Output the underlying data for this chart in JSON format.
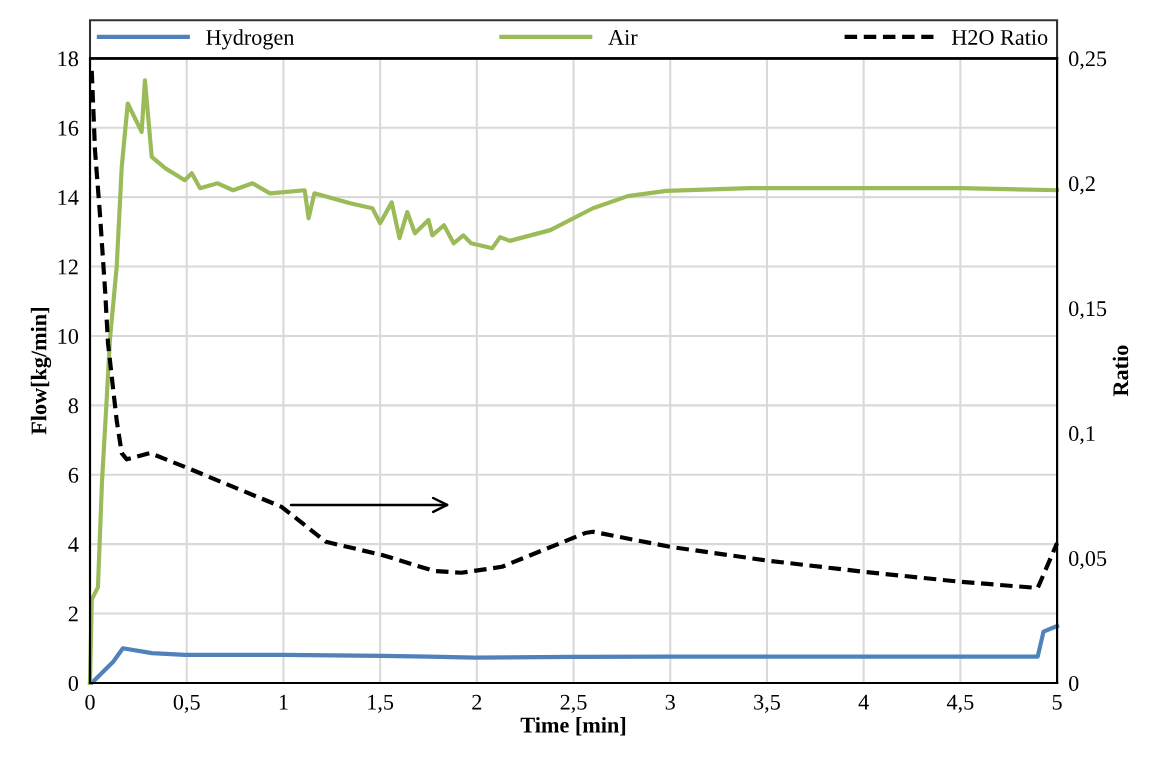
{
  "chart_data": {
    "type": "line",
    "xlabel": "Time [min]",
    "ylabel": "Flow[kg/min]",
    "y2label": "Ratio",
    "xlim": [
      0,
      5
    ],
    "xticks": [
      0,
      {
        "value": 0.5,
        "label": "0,5"
      },
      1,
      {
        "value": 1.5,
        "label": "1,5"
      },
      2,
      {
        "value": 2.5,
        "label": "2,5"
      },
      3,
      {
        "value": 3.5,
        "label": "3,5"
      },
      4,
      {
        "value": 4.5,
        "label": "4,5"
      },
      5
    ],
    "ylim": [
      0,
      18
    ],
    "yticks": [
      0,
      2,
      4,
      6,
      8,
      10,
      12,
      14,
      16,
      18
    ],
    "y2lim": [
      0,
      0.25
    ],
    "y2ticks": [
      0,
      {
        "value": 0.05,
        "label": "0,05"
      },
      {
        "value": 0.1,
        "label": "0,1"
      },
      {
        "value": 0.15,
        "label": "0,15"
      },
      {
        "value": 0.2,
        "label": "0,2"
      },
      {
        "value": 0.25,
        "label": "0,25"
      }
    ],
    "grid": true,
    "legend": "top",
    "marker": "none",
    "series": [
      {
        "name": "Hydrogen",
        "color": "#4f81bd",
        "line_style": "solid",
        "x": [
          0,
          0.009,
          0.12,
          0.17,
          0.32,
          0.49,
          1.0,
          1.51,
          1.75,
          1.99,
          2.5,
          3.0,
          4.0,
          4.9,
          4.93,
          5.0
        ],
        "values": [
          0,
          0,
          0.61,
          1.0,
          0.86,
          0.81,
          0.81,
          0.78,
          0.76,
          0.73,
          0.75,
          0.76,
          0.76,
          0.76,
          1.48,
          1.64
        ]
      },
      {
        "name": "Air",
        "color": "#9bbb59",
        "line_style": "solid",
        "x": [
          0,
          0.009,
          0.041,
          0.062,
          0.086,
          0.103,
          0.138,
          0.164,
          0.195,
          0.267,
          0.284,
          0.319,
          0.39,
          0.49,
          0.526,
          0.569,
          0.66,
          0.74,
          0.84,
          0.93,
          1.11,
          1.13,
          1.16,
          1.35,
          1.46,
          1.5,
          1.56,
          1.6,
          1.64,
          1.68,
          1.75,
          1.77,
          1.83,
          1.88,
          1.93,
          1.97,
          2.08,
          2.12,
          2.17,
          2.38,
          2.6,
          2.78,
          2.98,
          3.41,
          4.0,
          4.5,
          5.0
        ],
        "values": [
          0,
          2.4,
          2.76,
          5.8,
          8.15,
          9.9,
          12.0,
          14.87,
          16.7,
          15.88,
          17.37,
          15.16,
          14.83,
          14.49,
          14.69,
          14.26,
          14.4,
          14.2,
          14.4,
          14.11,
          14.2,
          13.39,
          14.11,
          13.82,
          13.68,
          13.25,
          13.85,
          12.82,
          13.57,
          12.96,
          13.34,
          12.9,
          13.19,
          12.67,
          12.9,
          12.67,
          12.53,
          12.85,
          12.74,
          13.05,
          13.68,
          14.03,
          14.18,
          14.26,
          14.26,
          14.26,
          14.2
        ]
      },
      {
        "name": "H2O Ratio",
        "color": "#000000",
        "line_style": "dashed",
        "axis": "y2",
        "x": [
          0.009,
          0.026,
          0.052,
          0.078,
          0.093,
          0.138,
          0.164,
          0.19,
          0.31,
          0.49,
          0.99,
          1.22,
          1.51,
          1.78,
          1.92,
          2.13,
          2.56,
          2.6,
          3.0,
          3.5,
          4.0,
          4.5,
          4.9,
          5.0
        ],
        "values": [
          0.245,
          0.213,
          0.187,
          0.157,
          0.136,
          0.105,
          0.092,
          0.0895,
          0.092,
          0.0865,
          0.0705,
          0.0565,
          0.0512,
          0.0448,
          0.0441,
          0.0465,
          0.06,
          0.0605,
          0.0545,
          0.049,
          0.0445,
          0.0405,
          0.038,
          0.056
        ]
      }
    ]
  }
}
